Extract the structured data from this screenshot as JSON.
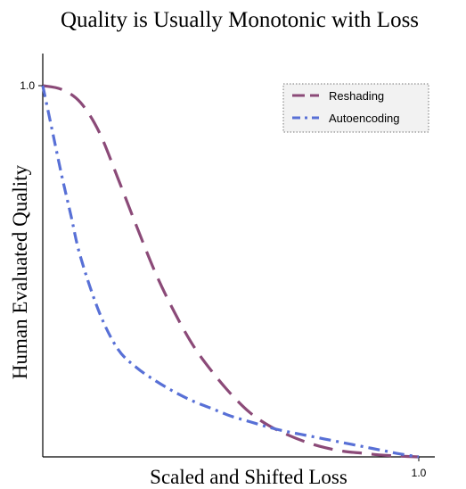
{
  "chart_data": {
    "type": "line",
    "title": "Quality is Usually Monotonic with Loss",
    "xlabel": "Scaled and Shifted Loss",
    "ylabel": "Human Evaluated Quality",
    "xlim": [
      0,
      1
    ],
    "ylim": [
      0,
      1
    ],
    "xticks": [
      {
        "value": 1.0,
        "label": "1.0"
      }
    ],
    "yticks": [
      {
        "value": 1.0,
        "label": "1.0"
      }
    ],
    "grid": false,
    "legend_position": "top-right",
    "series": [
      {
        "name": "Reshading",
        "color": "#8b4a78",
        "style": "dashed",
        "x": [
          0.0,
          0.05,
          0.1,
          0.15,
          0.2,
          0.25,
          0.3,
          0.35,
          0.4,
          0.45,
          0.5,
          0.55,
          0.6,
          0.65,
          0.7,
          0.75,
          0.8,
          0.85,
          0.9,
          0.95,
          1.0
        ],
        "y": [
          1.0,
          0.99,
          0.955,
          0.875,
          0.75,
          0.62,
          0.495,
          0.39,
          0.3,
          0.23,
          0.17,
          0.12,
          0.085,
          0.06,
          0.04,
          0.025,
          0.015,
          0.01,
          0.005,
          0.002,
          0.0
        ]
      },
      {
        "name": "Autoencoding",
        "color": "#5870d6",
        "style": "dashdot",
        "x": [
          0.0,
          0.025,
          0.05,
          0.075,
          0.1,
          0.15,
          0.2,
          0.25,
          0.3,
          0.35,
          0.4,
          0.45,
          0.5,
          0.55,
          0.6,
          0.65,
          0.7,
          0.75,
          0.8,
          0.85,
          0.9,
          0.95,
          1.0
        ],
        "y": [
          1.0,
          0.88,
          0.76,
          0.65,
          0.54,
          0.39,
          0.29,
          0.24,
          0.205,
          0.175,
          0.15,
          0.13,
          0.11,
          0.095,
          0.08,
          0.068,
          0.058,
          0.048,
          0.038,
          0.028,
          0.018,
          0.008,
          0.0
        ]
      }
    ]
  }
}
